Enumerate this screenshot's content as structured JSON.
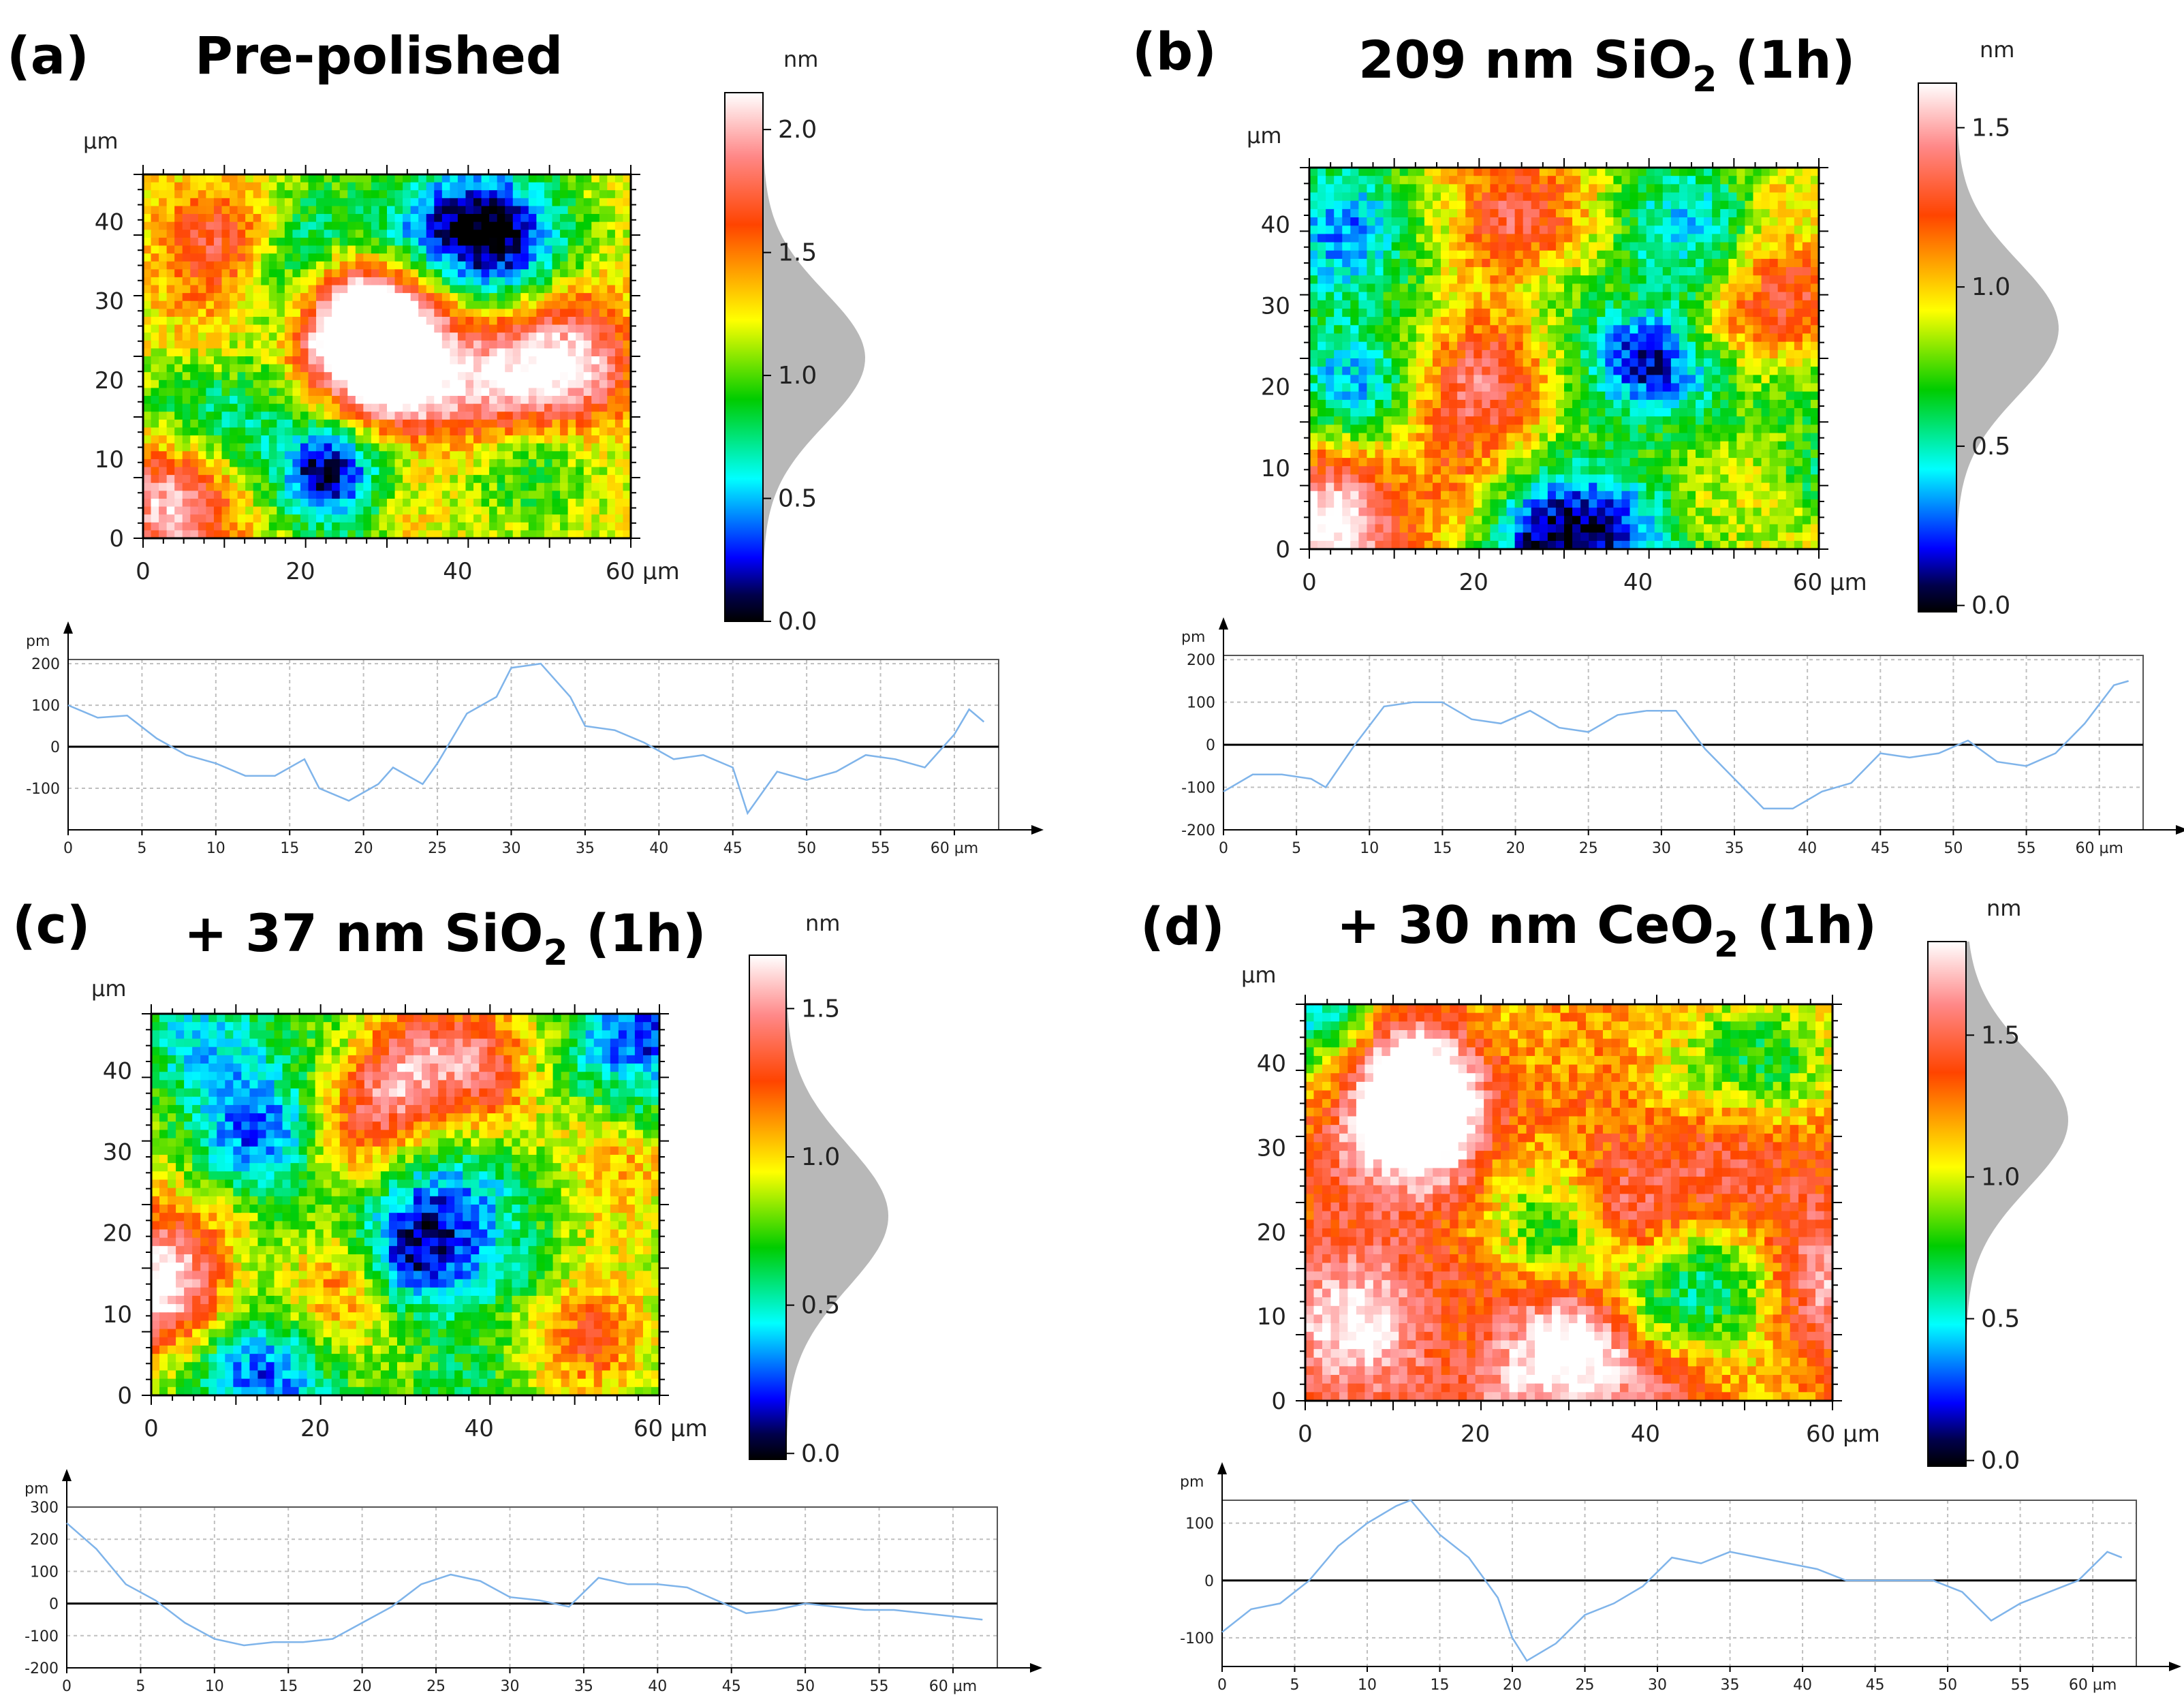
{
  "chart_data": [
    {
      "panel": "(a)",
      "title": "Pre-polished",
      "type": "heatmap",
      "map": {
        "x_unit": "µm",
        "y_unit": "µm",
        "xlim": [
          0,
          62
        ],
        "ylim": [
          0,
          46
        ],
        "xticks": [
          {
            "v": 0,
            "t": "0"
          },
          {
            "v": 20,
            "t": "20"
          },
          {
            "v": 40,
            "t": "40"
          },
          {
            "v": 60,
            "t": "60 µm"
          }
        ],
        "yticks": [
          {
            "v": 0,
            "t": "0"
          },
          {
            "v": 10,
            "t": "10"
          },
          {
            "v": 20,
            "t": "20"
          },
          {
            "v": 30,
            "t": "30"
          },
          {
            "v": 40,
            "t": "40"
          }
        ],
        "mean_color": 0.56,
        "features": [
          {
            "x": 30,
            "y": 22,
            "h": 0.7
          },
          {
            "x": 27,
            "y": 28,
            "h": 0.5
          },
          {
            "x": 45,
            "y": 18,
            "h": 0.4
          },
          {
            "x": 4,
            "y": 5,
            "h": 0.45
          },
          {
            "x": 54,
            "y": 22,
            "h": 0.4
          },
          {
            "x": 12,
            "y": 38,
            "h": 0.3
          },
          {
            "x": 20,
            "y": 36,
            "h": -0.45
          },
          {
            "x": 46,
            "y": 38,
            "h": -0.45
          },
          {
            "x": 38,
            "y": 40,
            "h": -0.3
          },
          {
            "x": 24,
            "y": 8,
            "h": -0.35
          },
          {
            "x": 48,
            "y": 12,
            "h": -0.3
          },
          {
            "x": 8,
            "y": 14,
            "h": -0.25
          }
        ]
      },
      "colorbar": {
        "unit": "nm",
        "min": 0.0,
        "max": 2.15,
        "ticks": [
          "0.0",
          "0.5",
          "1.0",
          "1.5",
          "2.0"
        ],
        "tick_values": [
          0.0,
          0.5,
          1.0,
          1.5,
          2.0
        ],
        "hist_mean": 1.07,
        "hist_sd": 0.27
      },
      "profile": {
        "y_unit": "pm",
        "xlim": [
          0,
          63
        ],
        "ylim": [
          -200,
          210
        ],
        "xticks": [
          "0",
          "5",
          "10",
          "15",
          "20",
          "25",
          "30",
          "35",
          "40",
          "45",
          "50",
          "55",
          "60 µm"
        ],
        "yticks": [
          "200",
          "100",
          "0",
          "-100"
        ],
        "ytick_values": [
          200,
          100,
          0,
          -100
        ],
        "points": [
          [
            0,
            100
          ],
          [
            2,
            70
          ],
          [
            4,
            75
          ],
          [
            6,
            20
          ],
          [
            8,
            -20
          ],
          [
            10,
            -40
          ],
          [
            12,
            -70
          ],
          [
            14,
            -70
          ],
          [
            16,
            -30
          ],
          [
            17,
            -100
          ],
          [
            19,
            -130
          ],
          [
            21,
            -90
          ],
          [
            22,
            -50
          ],
          [
            24,
            -90
          ],
          [
            25,
            -40
          ],
          [
            27,
            80
          ],
          [
            29,
            120
          ],
          [
            30,
            190
          ],
          [
            32,
            200
          ],
          [
            34,
            120
          ],
          [
            35,
            50
          ],
          [
            37,
            40
          ],
          [
            39,
            10
          ],
          [
            41,
            -30
          ],
          [
            43,
            -20
          ],
          [
            45,
            -50
          ],
          [
            46,
            -160
          ],
          [
            48,
            -60
          ],
          [
            50,
            -80
          ],
          [
            52,
            -60
          ],
          [
            54,
            -20
          ],
          [
            56,
            -30
          ],
          [
            58,
            -50
          ],
          [
            60,
            30
          ],
          [
            61,
            90
          ],
          [
            62,
            60
          ]
        ]
      }
    },
    {
      "panel": "(b)",
      "title_main": "209 nm SiO",
      "title_sub": "2",
      "title_tail": " (1h)",
      "type": "heatmap",
      "map": {
        "x_unit": "µm",
        "y_unit": "µm",
        "xlim": [
          0,
          62
        ],
        "ylim": [
          0,
          47
        ],
        "xticks": [
          {
            "v": 0,
            "t": "0"
          },
          {
            "v": 20,
            "t": "20"
          },
          {
            "v": 40,
            "t": "40"
          },
          {
            "v": 60,
            "t": "60 µm"
          }
        ],
        "yticks": [
          {
            "v": 0,
            "t": "0"
          },
          {
            "v": 10,
            "t": "10"
          },
          {
            "v": 20,
            "t": "20"
          },
          {
            "v": 30,
            "t": "30"
          },
          {
            "v": 40,
            "t": "40"
          }
        ],
        "mean_color": 0.55,
        "features": [
          {
            "x": 2,
            "y": 3,
            "h": 0.5
          },
          {
            "x": 20,
            "y": 21,
            "h": 0.35
          },
          {
            "x": 25,
            "y": 40,
            "h": 0.3
          },
          {
            "x": 55,
            "y": 30,
            "h": 0.3
          },
          {
            "x": 4,
            "y": 40,
            "h": -0.35
          },
          {
            "x": 40,
            "y": 24,
            "h": -0.35
          },
          {
            "x": 30,
            "y": 2,
            "h": -0.45
          },
          {
            "x": 40,
            "y": 2,
            "h": -0.3
          },
          {
            "x": 45,
            "y": 40,
            "h": -0.25
          },
          {
            "x": 60,
            "y": 16,
            "h": -0.2
          },
          {
            "x": 8,
            "y": 22,
            "h": -0.2
          }
        ]
      },
      "colorbar": {
        "unit": "nm",
        "min": -0.02,
        "max": 1.64,
        "ticks": [
          "0.0",
          "0.5",
          "1.0",
          "1.5"
        ],
        "tick_values": [
          0.0,
          0.5,
          1.0,
          1.5
        ],
        "hist_mean": 0.87,
        "hist_sd": 0.21
      },
      "profile": {
        "y_unit": "pm",
        "xlim": [
          0,
          63
        ],
        "ylim": [
          -200,
          210
        ],
        "xticks": [
          "0",
          "5",
          "10",
          "15",
          "20",
          "25",
          "30",
          "35",
          "40",
          "45",
          "50",
          "55",
          "60 µm"
        ],
        "yticks": [
          "200",
          "100",
          "0",
          "-100",
          "-200"
        ],
        "ytick_values": [
          200,
          100,
          0,
          -100,
          -200
        ],
        "points": [
          [
            0,
            -110
          ],
          [
            2,
            -70
          ],
          [
            4,
            -70
          ],
          [
            6,
            -80
          ],
          [
            7,
            -100
          ],
          [
            9,
            0
          ],
          [
            11,
            90
          ],
          [
            13,
            100
          ],
          [
            15,
            100
          ],
          [
            17,
            60
          ],
          [
            19,
            50
          ],
          [
            21,
            80
          ],
          [
            23,
            40
          ],
          [
            25,
            30
          ],
          [
            27,
            70
          ],
          [
            29,
            80
          ],
          [
            31,
            80
          ],
          [
            33,
            -10
          ],
          [
            35,
            -80
          ],
          [
            37,
            -150
          ],
          [
            39,
            -150
          ],
          [
            41,
            -110
          ],
          [
            43,
            -90
          ],
          [
            45,
            -20
          ],
          [
            47,
            -30
          ],
          [
            49,
            -20
          ],
          [
            51,
            10
          ],
          [
            53,
            -40
          ],
          [
            55,
            -50
          ],
          [
            57,
            -20
          ],
          [
            59,
            50
          ],
          [
            61,
            140
          ],
          [
            62,
            150
          ]
        ]
      }
    },
    {
      "panel": "(c)",
      "title_main": "+ 37 nm SiO",
      "title_sub": "2",
      "title_tail": " (1h)",
      "type": "heatmap",
      "map": {
        "x_unit": "µm",
        "y_unit": "µm",
        "xlim": [
          0,
          62
        ],
        "ylim": [
          0,
          47
        ],
        "xticks": [
          {
            "v": 0,
            "t": "0"
          },
          {
            "v": 20,
            "t": "20"
          },
          {
            "v": 40,
            "t": "40"
          },
          {
            "v": 60,
            "t": "60 µm"
          }
        ],
        "yticks": [
          {
            "v": 0,
            "t": "0"
          },
          {
            "v": 10,
            "t": "10"
          },
          {
            "v": 20,
            "t": "20"
          },
          {
            "v": 30,
            "t": "30"
          },
          {
            "v": 40,
            "t": "40"
          }
        ],
        "mean_color": 0.48,
        "features": [
          {
            "x": 1,
            "y": 14,
            "h": 0.6
          },
          {
            "x": 40,
            "y": 40,
            "h": 0.35
          },
          {
            "x": 30,
            "y": 40,
            "h": 0.3
          },
          {
            "x": 52,
            "y": 8,
            "h": 0.3
          },
          {
            "x": 22,
            "y": 14,
            "h": 0.25
          },
          {
            "x": 58,
            "y": 28,
            "h": 0.2
          },
          {
            "x": 14,
            "y": 32,
            "h": -0.35
          },
          {
            "x": 32,
            "y": 18,
            "h": -0.4
          },
          {
            "x": 14,
            "y": 3,
            "h": -0.35
          },
          {
            "x": 60,
            "y": 45,
            "h": -0.45
          },
          {
            "x": 36,
            "y": 28,
            "h": -0.2
          },
          {
            "x": 6,
            "y": 44,
            "h": -0.2
          }
        ]
      },
      "colorbar": {
        "unit": "nm",
        "min": -0.02,
        "max": 1.68,
        "ticks": [
          "0.0",
          "0.5",
          "1.0",
          "1.5"
        ],
        "tick_values": [
          0.0,
          0.5,
          1.0,
          1.5
        ],
        "hist_mean": 0.8,
        "hist_sd": 0.24
      },
      "profile": {
        "y_unit": "pm",
        "xlim": [
          0,
          63
        ],
        "ylim": [
          -200,
          300
        ],
        "xticks": [
          "0",
          "5",
          "10",
          "15",
          "20",
          "25",
          "30",
          "35",
          "40",
          "45",
          "50",
          "55",
          "60 µm"
        ],
        "yticks": [
          "300",
          "200",
          "100",
          "0",
          "-100",
          "-200"
        ],
        "ytick_values": [
          300,
          200,
          100,
          0,
          -100,
          -200
        ],
        "points": [
          [
            0,
            250
          ],
          [
            2,
            170
          ],
          [
            4,
            60
          ],
          [
            6,
            10
          ],
          [
            8,
            -60
          ],
          [
            10,
            -110
          ],
          [
            12,
            -130
          ],
          [
            14,
            -120
          ],
          [
            16,
            -120
          ],
          [
            18,
            -110
          ],
          [
            20,
            -60
          ],
          [
            22,
            -10
          ],
          [
            24,
            60
          ],
          [
            26,
            90
          ],
          [
            28,
            70
          ],
          [
            30,
            20
          ],
          [
            32,
            10
          ],
          [
            34,
            -10
          ],
          [
            36,
            80
          ],
          [
            38,
            60
          ],
          [
            40,
            60
          ],
          [
            42,
            50
          ],
          [
            44,
            10
          ],
          [
            46,
            -30
          ],
          [
            48,
            -20
          ],
          [
            50,
            0
          ],
          [
            52,
            -10
          ],
          [
            54,
            -20
          ],
          [
            56,
            -20
          ],
          [
            58,
            -30
          ],
          [
            60,
            -40
          ],
          [
            62,
            -50
          ]
        ]
      }
    },
    {
      "panel": "(d)",
      "title_main": "+ 30 nm CeO",
      "title_sub": "2",
      "title_tail": " (1h)",
      "type": "heatmap",
      "map": {
        "x_unit": "µm",
        "y_unit": "µm",
        "xlim": [
          0,
          62
        ],
        "ylim": [
          0,
          47
        ],
        "xticks": [
          {
            "v": 0,
            "t": "0"
          },
          {
            "v": 20,
            "t": "20"
          },
          {
            "v": 40,
            "t": "40"
          },
          {
            "v": 60,
            "t": "60 µm"
          }
        ],
        "yticks": [
          {
            "v": 0,
            "t": "0"
          },
          {
            "v": 10,
            "t": "10"
          },
          {
            "v": 20,
            "t": "20"
          },
          {
            "v": 30,
            "t": "30"
          },
          {
            "v": 40,
            "t": "40"
          }
        ],
        "mean_color": 0.72,
        "features": [
          {
            "x": 12,
            "y": 38,
            "h": 0.4
          },
          {
            "x": 14,
            "y": 33,
            "h": 0.35
          },
          {
            "x": 32,
            "y": 7,
            "h": 0.35
          },
          {
            "x": 6,
            "y": 9,
            "h": 0.3
          },
          {
            "x": 50,
            "y": 28,
            "h": 0.2
          },
          {
            "x": 60,
            "y": 14,
            "h": 0.25
          },
          {
            "x": 30,
            "y": 20,
            "h": -0.35
          },
          {
            "x": 50,
            "y": 14,
            "h": -0.35
          },
          {
            "x": 55,
            "y": 40,
            "h": -0.3
          },
          {
            "x": 1,
            "y": 46,
            "h": -0.45
          },
          {
            "x": 40,
            "y": 12,
            "h": -0.2
          },
          {
            "x": 22,
            "y": 44,
            "h": -0.15
          }
        ]
      },
      "colorbar": {
        "unit": "nm",
        "min": -0.02,
        "max": 1.83,
        "ticks": [
          "0.0",
          "0.5",
          "1.0",
          "1.5"
        ],
        "tick_values": [
          0.0,
          0.5,
          1.0,
          1.5
        ],
        "hist_mean": 1.2,
        "hist_sd": 0.24
      },
      "profile": {
        "y_unit": "pm",
        "xlim": [
          0,
          63
        ],
        "ylim": [
          -150,
          140
        ],
        "xticks": [
          "0",
          "5",
          "10",
          "15",
          "20",
          "25",
          "30",
          "35",
          "40",
          "45",
          "50",
          "55",
          "60 µm"
        ],
        "yticks": [
          "100",
          "0",
          "-100"
        ],
        "ytick_values": [
          100,
          0,
          -100
        ],
        "points": [
          [
            0,
            -90
          ],
          [
            2,
            -50
          ],
          [
            4,
            -40
          ],
          [
            6,
            0
          ],
          [
            8,
            60
          ],
          [
            10,
            100
          ],
          [
            12,
            130
          ],
          [
            13,
            140
          ],
          [
            15,
            80
          ],
          [
            17,
            40
          ],
          [
            19,
            -30
          ],
          [
            20,
            -100
          ],
          [
            21,
            -140
          ],
          [
            23,
            -110
          ],
          [
            25,
            -60
          ],
          [
            27,
            -40
          ],
          [
            29,
            -10
          ],
          [
            31,
            40
          ],
          [
            33,
            30
          ],
          [
            35,
            50
          ],
          [
            37,
            40
          ],
          [
            39,
            30
          ],
          [
            41,
            20
          ],
          [
            43,
            0
          ],
          [
            45,
            0
          ],
          [
            47,
            0
          ],
          [
            49,
            0
          ],
          [
            51,
            -20
          ],
          [
            53,
            -70
          ],
          [
            55,
            -40
          ],
          [
            57,
            -20
          ],
          [
            59,
            0
          ],
          [
            61,
            50
          ],
          [
            62,
            40
          ]
        ]
      }
    }
  ]
}
